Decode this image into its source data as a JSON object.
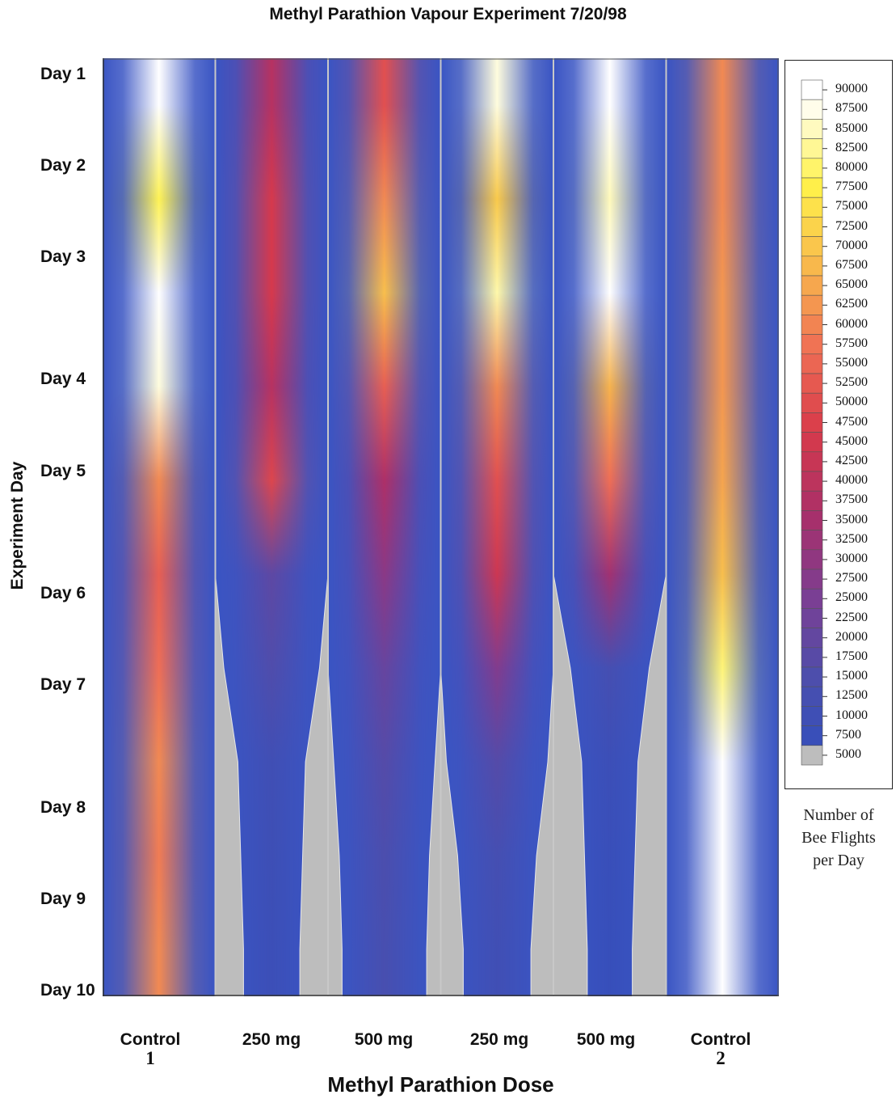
{
  "chart_data": {
    "type": "heatmap",
    "title": "Methyl Parathion Vapour Experiment 7/20/98",
    "xlabel": "Methyl Parathion Dose",
    "ylabel": "Experiment Day",
    "rows": [
      "Day 1",
      "Day 2",
      "Day 3",
      "Day 4",
      "Day 5",
      "Day 6",
      "Day 7",
      "Day 8",
      "Day 9",
      "Day 10"
    ],
    "columns": [
      {
        "label": "Control",
        "sub": "1"
      },
      {
        "label": "250 mg",
        "sub": ""
      },
      {
        "label": "500 mg",
        "sub": ""
      },
      {
        "label": "250 mg",
        "sub": ""
      },
      {
        "label": "500 mg",
        "sub": ""
      },
      {
        "label": "Control",
        "sub": "2"
      }
    ],
    "values": [
      [
        95000,
        40000,
        52000,
        88000,
        90000,
        62000
      ],
      [
        80000,
        47000,
        62000,
        72000,
        86000,
        62000
      ],
      [
        92000,
        47000,
        70000,
        85000,
        92000,
        64000
      ],
      [
        88000,
        40000,
        55000,
        62000,
        68000,
        64000
      ],
      [
        62000,
        50000,
        38000,
        52000,
        58000,
        66000
      ],
      [
        55000,
        20000,
        30000,
        45000,
        35000,
        70000
      ],
      [
        58000,
        17000,
        22000,
        28000,
        14000,
        82000
      ],
      [
        62000,
        12000,
        18000,
        18000,
        10000,
        95000
      ],
      [
        60000,
        11000,
        16000,
        14000,
        9000,
        97000
      ],
      [
        62000,
        10000,
        15000,
        12000,
        8000,
        98000
      ]
    ],
    "colorbar": {
      "title": [
        "Number of",
        "Bee Flights",
        "per Day"
      ],
      "levels": [
        "90000",
        "87500",
        "85000",
        "82500",
        "80000",
        "77500",
        "75000",
        "72500",
        "70000",
        "67500",
        "65000",
        "62500",
        "60000",
        "57500",
        "55000",
        "52500",
        "50000",
        "47500",
        "45000",
        "42500",
        "40000",
        "37500",
        "35000",
        "32500",
        "30000",
        "27500",
        "25000",
        "22500",
        "20000",
        "17500",
        "15000",
        "12500",
        "10000",
        "7500",
        "5000"
      ],
      "min": 5000,
      "max": 90000,
      "colors": [
        "#bdbdbd",
        "#2f4fbf",
        "#4a4fae",
        "#7a3f94",
        "#a92f6a",
        "#d83a4a",
        "#ef6f55",
        "#f8b84c",
        "#fff24a",
        "#ffffff"
      ]
    }
  }
}
